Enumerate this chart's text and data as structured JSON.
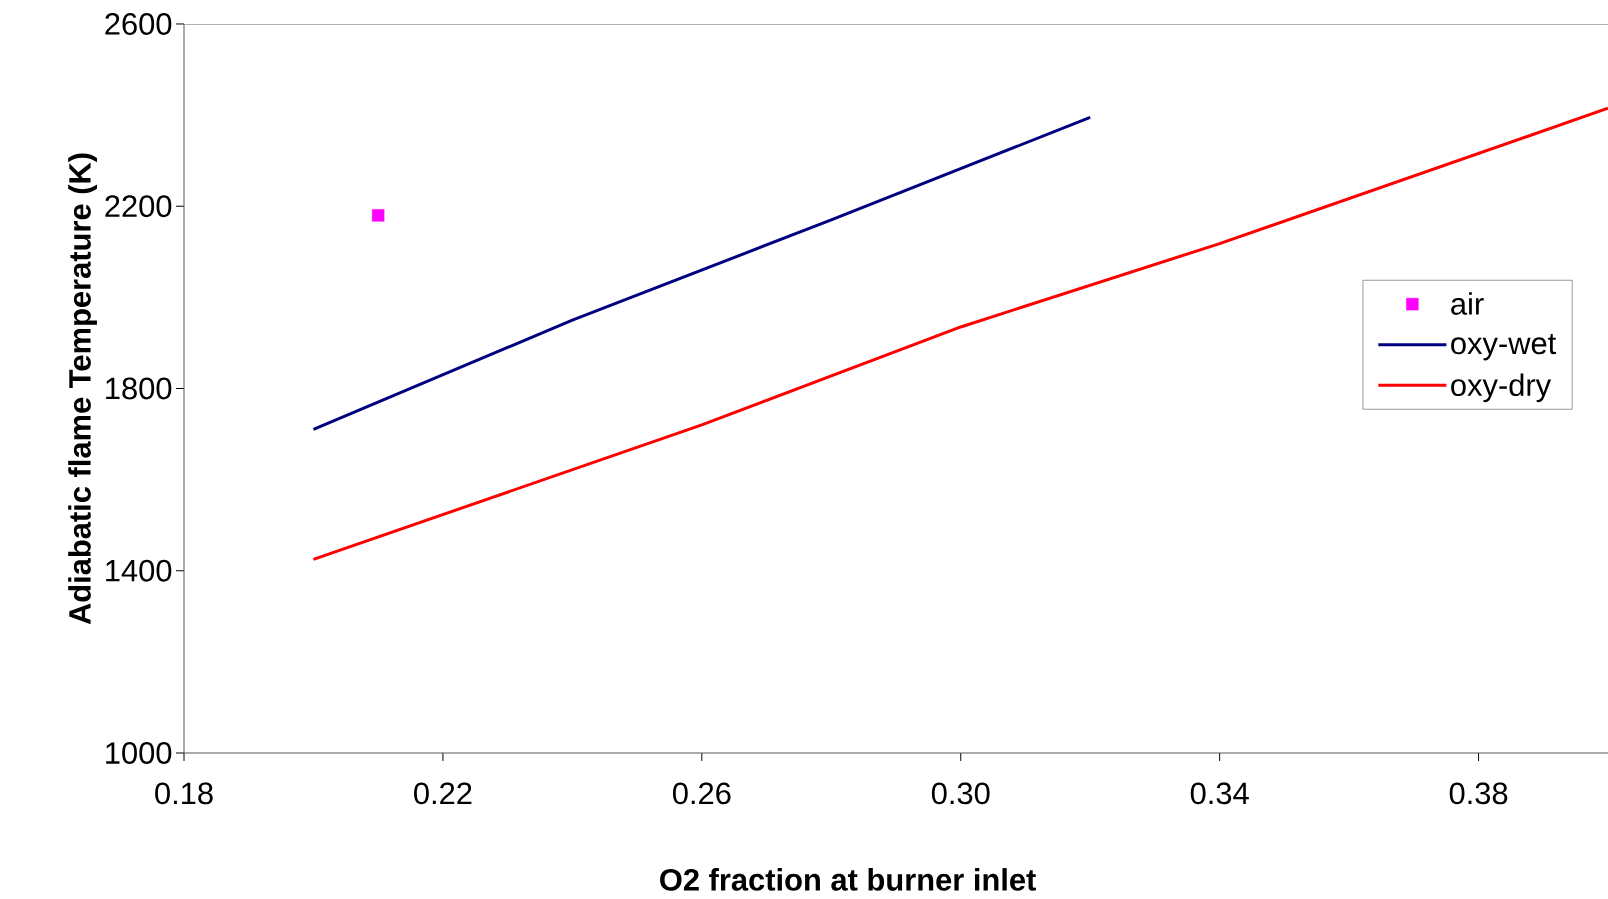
{
  "chart_data": {
    "type": "line",
    "xlabel": "O2 fraction at burner inlet",
    "ylabel": "Adiabatic flame Temperature (K)",
    "xlim": [
      0.18,
      0.4
    ],
    "xticks": [
      0.18,
      {
        "value": 0.22,
        "label": "0.22"
      },
      {
        "value": 0.26,
        "label": "0.26"
      },
      {
        "value": 0.3,
        "label": "0.30"
      },
      {
        "value": 0.34,
        "label": "0.34"
      },
      {
        "value": 0.38,
        "label": "0.38"
      }
    ],
    "ylim": [
      1000,
      2600
    ],
    "yticks": [
      1000,
      1400,
      1800,
      2200,
      2600
    ],
    "grid": false,
    "legend": "right",
    "series": [
      {
        "name": "air",
        "type": "scatter",
        "marker": "square",
        "color": "#ff00ff",
        "x": [
          0.21
        ],
        "values": [
          2180
        ]
      },
      {
        "name": "oxy-wet",
        "color": "#000080",
        "x": [
          0.2,
          0.24,
          0.28,
          0.32
        ],
        "values": [
          1710,
          1950,
          2170,
          2395
        ]
      },
      {
        "name": "oxy-dry",
        "color": "#ff0000",
        "x": [
          0.2,
          0.26,
          0.3,
          0.34,
          0.4
        ],
        "values": [
          1425,
          1720,
          1935,
          2118,
          2415
        ]
      }
    ]
  }
}
